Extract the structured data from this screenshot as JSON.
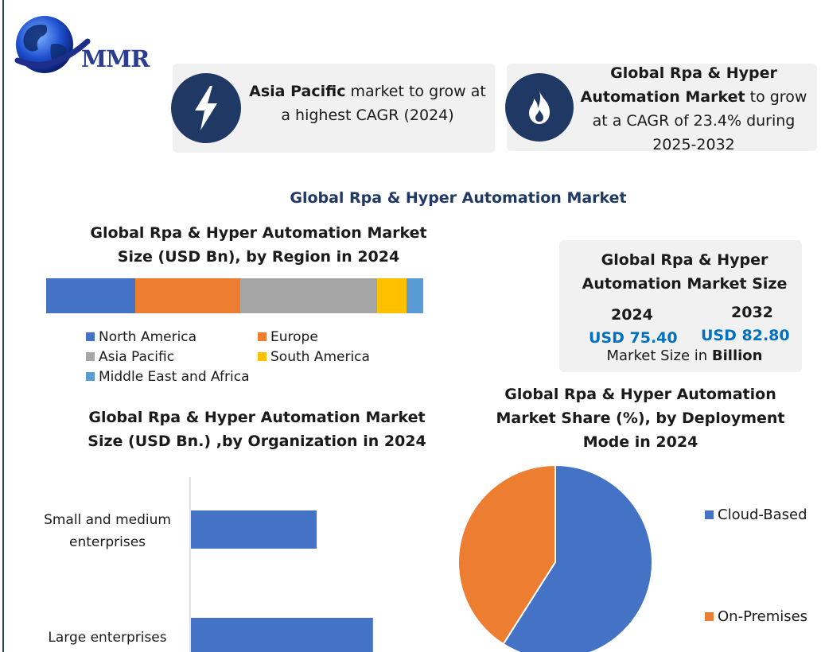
{
  "logo": {
    "text": "MMR",
    "icon": "globe-icon"
  },
  "highlights": [
    {
      "icon": "lightning-icon",
      "bold": "Asia Pacific",
      "rest": " market to grow at a highest CAGR (2024)"
    },
    {
      "icon": "flame-icon",
      "bold": "Global Rpa & Hyper Automation Market",
      "rest": " to grow at a CAGR of 23.4% during 2025-2032"
    }
  ],
  "main_title": "Global Rpa & Hyper Automation Market",
  "market_size": {
    "title": "Global Rpa & Hyper Automation Market Size",
    "year_1": "2024",
    "value_1": "USD 75.40",
    "year_2": "2032",
    "value_2": "USD 82.80",
    "note_prefix": "Market Size in ",
    "note_bold": "Billion"
  },
  "colors": {
    "north_america": "#4472c4",
    "europe": "#ed7d31",
    "asia_pacific": "#a5a5a5",
    "south_america": "#ffc000",
    "middle_east_africa": "#5b9bd5",
    "icon_bg": "#1f3864",
    "accent_blue": "#0070c0"
  },
  "chart_data": [
    {
      "type": "bar",
      "title": "Global Rpa & Hyper Automation Market Size  (USD Bn), by Region in 2024",
      "orientation": "horizontal-stacked",
      "series": [
        {
          "name": "North America",
          "values": [
            23.4
          ]
        },
        {
          "name": "Europe",
          "values": [
            27.7
          ]
        },
        {
          "name": "Asia Pacific",
          "values": [
            36.2
          ]
        },
        {
          "name": "South America",
          "values": [
            7.6
          ]
        },
        {
          "name": "Middle East and Africa",
          "values": [
            4.5
          ]
        }
      ],
      "legend": "bottom"
    },
    {
      "type": "bar",
      "title": "Global Rpa & Hyper Automation Market Size (USD Bn.) ,by Organization in 2024",
      "orientation": "horizontal",
      "categories": [
        "Small and medium enterprises",
        "Large enterprises"
      ],
      "values": [
        38,
        55
      ],
      "xlim": [
        0,
        75
      ]
    },
    {
      "type": "pie",
      "title": "Global Rpa & Hyper Automation Market Share (%), by Deployment Mode in 2024",
      "series": [
        {
          "name": "Cloud-Based",
          "values": [
            59
          ]
        },
        {
          "name": "On-Premises",
          "values": [
            41
          ]
        }
      ],
      "legend": "right"
    }
  ]
}
